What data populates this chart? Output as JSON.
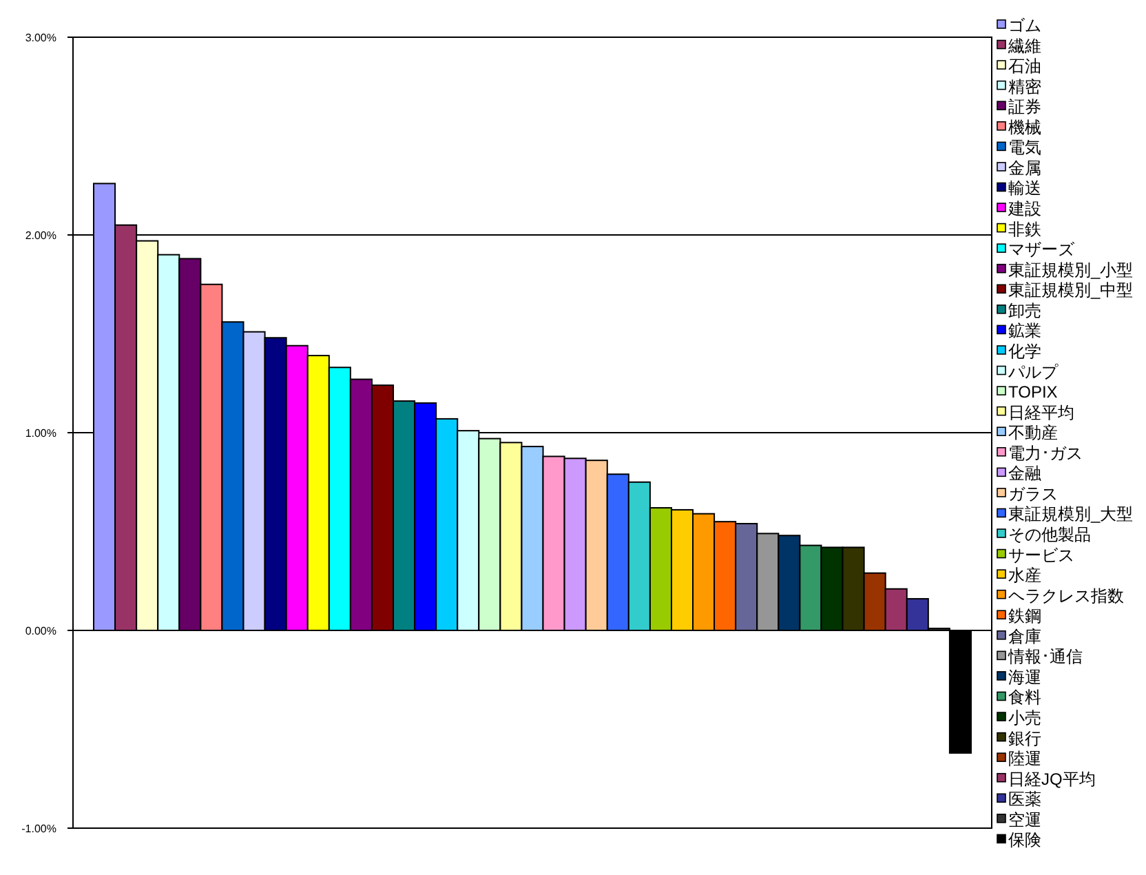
{
  "chart_data": {
    "type": "bar",
    "categories": [
      null
    ],
    "ylim": [
      -1,
      3
    ],
    "yticks": [
      {
        "value": -1,
        "label": "-1.00%"
      },
      {
        "value": 0,
        "label": "0.00%"
      },
      {
        "value": 1,
        "label": "1.00%"
      },
      {
        "value": 2,
        "label": "2.00%"
      },
      {
        "value": 3,
        "label": "3.00%"
      }
    ],
    "grid": "y",
    "legend": "right",
    "series": [
      {
        "name": "ゴム",
        "color": "#9999ff",
        "values": [
          2.26
        ]
      },
      {
        "name": "繊維",
        "color": "#993366",
        "values": [
          2.05
        ]
      },
      {
        "name": "石油",
        "color": "#ffffcc",
        "values": [
          1.97
        ]
      },
      {
        "name": "精密",
        "color": "#ccffff",
        "values": [
          1.9
        ]
      },
      {
        "name": "証券",
        "color": "#660066",
        "values": [
          1.88
        ]
      },
      {
        "name": "機械",
        "color": "#ff8080",
        "values": [
          1.75
        ]
      },
      {
        "name": "電気",
        "color": "#0066cc",
        "values": [
          1.56
        ]
      },
      {
        "name": "金属",
        "color": "#ccccff",
        "values": [
          1.51
        ]
      },
      {
        "name": "輸送",
        "color": "#000080",
        "values": [
          1.48
        ]
      },
      {
        "name": "建設",
        "color": "#ff00ff",
        "values": [
          1.44
        ]
      },
      {
        "name": "非鉄",
        "color": "#ffff00",
        "values": [
          1.39
        ]
      },
      {
        "name": "マザーズ",
        "color": "#00ffff",
        "values": [
          1.33
        ]
      },
      {
        "name": "東証規模別_小型",
        "color": "#800080",
        "values": [
          1.27
        ]
      },
      {
        "name": "東証規模別_中型",
        "color": "#800000",
        "values": [
          1.24
        ]
      },
      {
        "name": "卸売",
        "color": "#008080",
        "values": [
          1.16
        ]
      },
      {
        "name": "鉱業",
        "color": "#0000ff",
        "values": [
          1.15
        ]
      },
      {
        "name": "化学",
        "color": "#00ccff",
        "values": [
          1.07
        ]
      },
      {
        "name": "パルプ",
        "color": "#ccffff",
        "values": [
          1.01
        ]
      },
      {
        "name": "TOPIX",
        "color": "#ccffcc",
        "values": [
          0.97
        ]
      },
      {
        "name": "日経平均",
        "color": "#ffff99",
        "values": [
          0.95
        ]
      },
      {
        "name": "不動産",
        "color": "#99ccff",
        "values": [
          0.93
        ]
      },
      {
        "name": "電力･ガス",
        "color": "#ff99cc",
        "values": [
          0.88
        ]
      },
      {
        "name": "金融",
        "color": "#cc99ff",
        "values": [
          0.87
        ]
      },
      {
        "name": "ガラス",
        "color": "#ffcc99",
        "values": [
          0.86
        ]
      },
      {
        "name": "東証規模別_大型",
        "color": "#3366ff",
        "values": [
          0.79
        ]
      },
      {
        "name": "その他製品",
        "color": "#33cccc",
        "values": [
          0.75
        ]
      },
      {
        "name": "サービス",
        "color": "#99cc00",
        "values": [
          0.62
        ]
      },
      {
        "name": "水産",
        "color": "#ffcc00",
        "values": [
          0.61
        ]
      },
      {
        "name": "ヘラクレス指数",
        "color": "#ff9900",
        "values": [
          0.59
        ]
      },
      {
        "name": "鉄鋼",
        "color": "#ff6600",
        "values": [
          0.55
        ]
      },
      {
        "name": "倉庫",
        "color": "#666699",
        "values": [
          0.54
        ]
      },
      {
        "name": "情報･通信",
        "color": "#969696",
        "values": [
          0.49
        ]
      },
      {
        "name": "海運",
        "color": "#003366",
        "values": [
          0.48
        ]
      },
      {
        "name": "食料",
        "color": "#339966",
        "values": [
          0.43
        ]
      },
      {
        "name": "小売",
        "color": "#003300",
        "values": [
          0.42
        ]
      },
      {
        "name": "銀行",
        "color": "#333300",
        "values": [
          0.42
        ]
      },
      {
        "name": "陸運",
        "color": "#993300",
        "values": [
          0.29
        ]
      },
      {
        "name": "日経JQ平均",
        "color": "#993366",
        "values": [
          0.21
        ]
      },
      {
        "name": "医薬",
        "color": "#333399",
        "values": [
          0.16
        ]
      },
      {
        "name": "空運",
        "color": "#333333",
        "values": [
          0.01
        ]
      },
      {
        "name": "保険",
        "color": "#000000",
        "values": [
          -0.62
        ]
      }
    ]
  }
}
